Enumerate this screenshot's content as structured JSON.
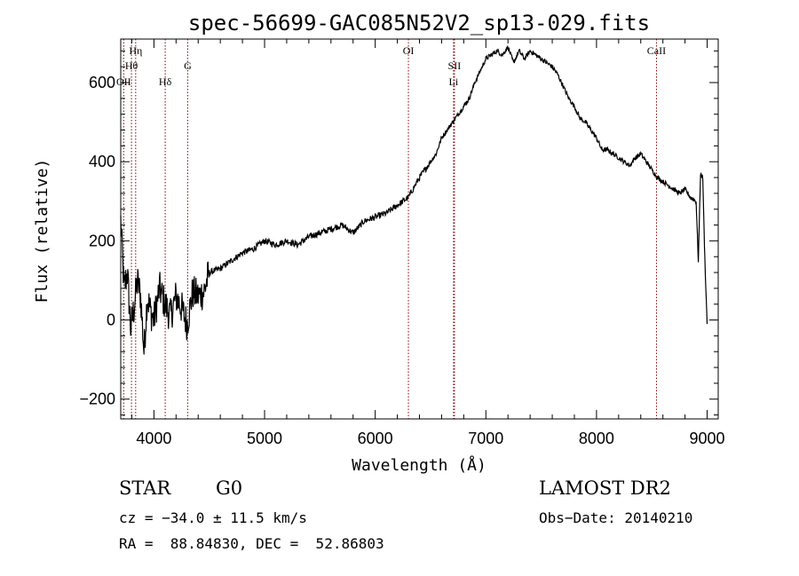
{
  "chart_data": {
    "type": "line",
    "title": "spec-56699-GAC085N52V2_sp13-029.fits",
    "xlabel": "Wavelength (Å)",
    "ylabel": "Flux (relative)",
    "xlim": [
      3700,
      9100
    ],
    "ylim": [
      -250,
      710
    ],
    "xticks": [
      4000,
      5000,
      6000,
      7000,
      8000,
      9000
    ],
    "xtick_labels": [
      "4000",
      "5000",
      "6000",
      "7000",
      "8000",
      "9000"
    ],
    "yticks": [
      -200,
      0,
      200,
      400,
      600
    ],
    "ytick_labels": [
      "−200",
      "0",
      "200",
      "400",
      "600"
    ],
    "spectrum": {
      "x": [
        3700,
        3730,
        3760,
        3790,
        3820,
        3850,
        3880,
        3910,
        3940,
        3970,
        4000,
        4050,
        4100,
        4150,
        4200,
        4250,
        4300,
        4350,
        4400,
        4450,
        4500,
        4600,
        4700,
        4800,
        4900,
        5000,
        5100,
        5200,
        5300,
        5400,
        5500,
        5600,
        5700,
        5800,
        5900,
        6000,
        6100,
        6200,
        6300,
        6400,
        6500,
        6550,
        6600,
        6650,
        6700,
        6750,
        6800,
        6850,
        6900,
        6950,
        7000,
        7050,
        7100,
        7150,
        7200,
        7250,
        7300,
        7350,
        7400,
        7450,
        7500,
        7550,
        7600,
        7650,
        7700,
        7750,
        7800,
        7850,
        7900,
        7950,
        8000,
        8050,
        8100,
        8150,
        8200,
        8250,
        8300,
        8350,
        8400,
        8450,
        8500,
        8550,
        8600,
        8650,
        8700,
        8750,
        8800,
        8850,
        8900,
        8920,
        8940,
        8960,
        8980,
        9000
      ],
      "y": [
        250,
        80,
        120,
        -20,
        30,
        100,
        60,
        -80,
        60,
        20,
        0,
        80,
        40,
        10,
        60,
        30,
        -10,
        70,
        60,
        70,
        120,
        130,
        150,
        170,
        180,
        200,
        190,
        200,
        190,
        210,
        220,
        230,
        240,
        220,
        250,
        260,
        270,
        290,
        310,
        360,
        400,
        420,
        460,
        480,
        500,
        520,
        540,
        560,
        600,
        630,
        660,
        670,
        680,
        670,
        690,
        650,
        680,
        660,
        680,
        670,
        660,
        650,
        640,
        620,
        590,
        560,
        540,
        510,
        500,
        480,
        460,
        430,
        430,
        420,
        410,
        400,
        390,
        410,
        420,
        400,
        380,
        360,
        350,
        340,
        330,
        320,
        330,
        310,
        300,
        150,
        370,
        360,
        150,
        -10
      ]
    },
    "line_markers": [
      {
        "name": "Hη",
        "x": 3835,
        "row": 0
      },
      {
        "name": "Hθ",
        "x": 3797,
        "row": 1
      },
      {
        "name": "OII",
        "x": 3727,
        "row": 2
      },
      {
        "name": "Hδ",
        "x": 4102,
        "row": 2
      },
      {
        "name": "G",
        "x": 4305,
        "row": 1
      },
      {
        "name": "OI",
        "x": 6300,
        "row": 0
      },
      {
        "name": "SII",
        "x": 6716,
        "row": 1
      },
      {
        "name": "Li",
        "x": 6708,
        "row": 2
      },
      {
        "name": "CaII",
        "x": 8542,
        "row": 0
      }
    ],
    "marker_color": "#8b0000",
    "grid": false
  },
  "footer": {
    "class_label": "STAR",
    "subclass": "G0",
    "survey": "LAMOST DR2",
    "cz_text": "cz = −34.0 ± 11.5 km/s",
    "obs_date_text": "Obs−Date: 20140210",
    "coords_text": "RA =  88.84830, DEC =  52.86803"
  }
}
